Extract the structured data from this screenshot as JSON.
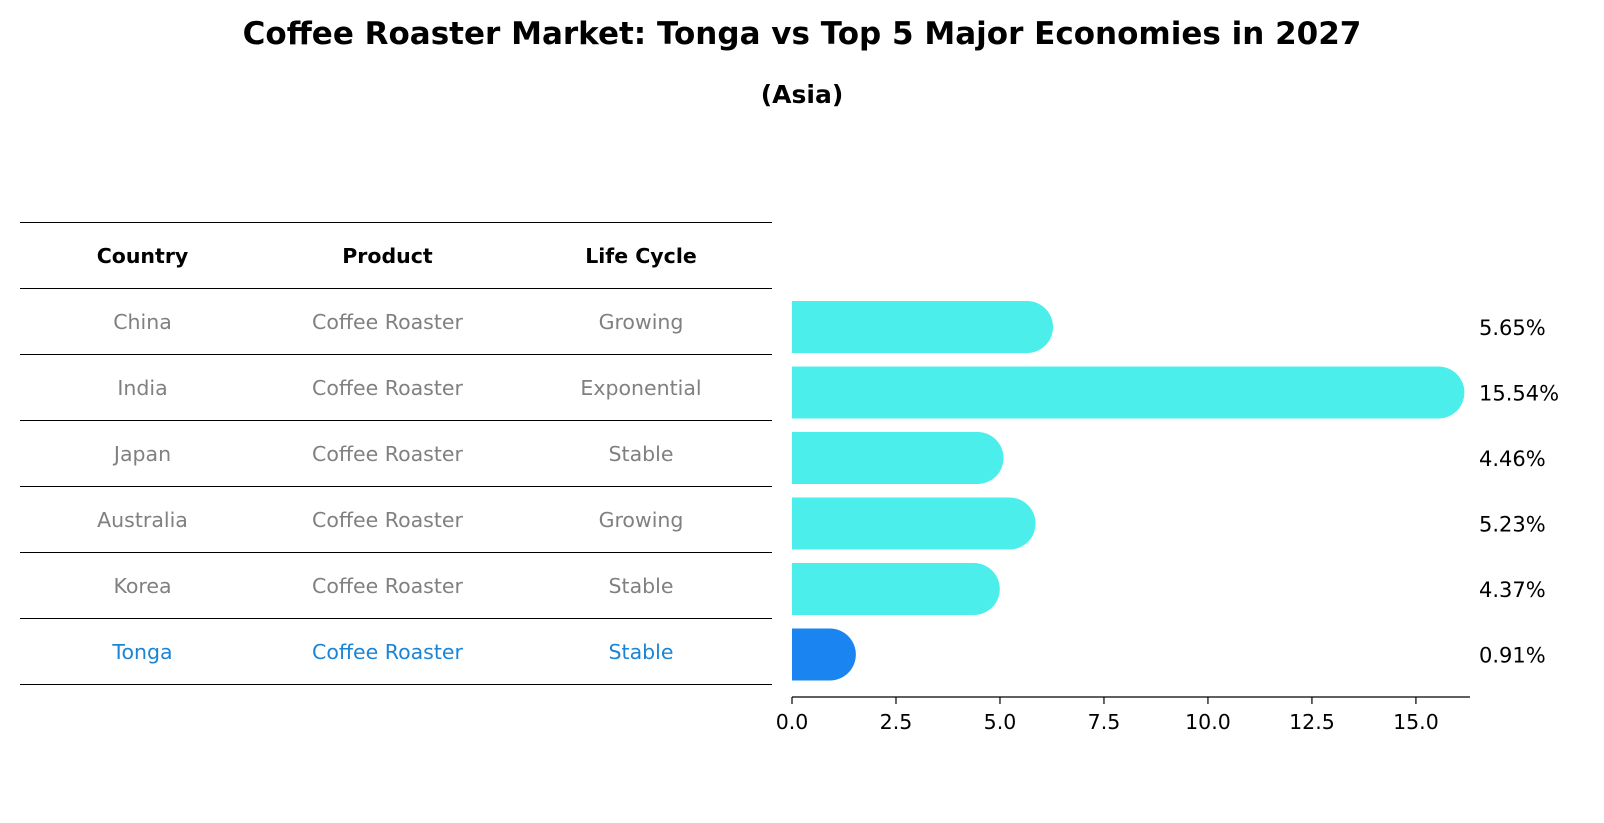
{
  "header": {
    "title": "Coffee Roaster Market: Tonga vs Top 5 Major Economies in 2027",
    "subtitle": "(Asia)"
  },
  "table": {
    "columns": [
      "Country",
      "Product",
      "Life Cycle"
    ],
    "rows": [
      {
        "country": "China",
        "product": "Coffee Roaster",
        "life_cycle": "Growing"
      },
      {
        "country": "India",
        "product": "Coffee Roaster",
        "life_cycle": "Exponential"
      },
      {
        "country": "Japan",
        "product": "Coffee Roaster",
        "life_cycle": "Stable"
      },
      {
        "country": "Australia",
        "product": "Coffee Roaster",
        "life_cycle": "Growing"
      },
      {
        "country": "Korea",
        "product": "Coffee Roaster",
        "life_cycle": "Stable"
      },
      {
        "country": "Tonga",
        "product": "Coffee Roaster",
        "life_cycle": "Stable"
      }
    ]
  },
  "colors": {
    "bar": "#4beeea",
    "highlight_bar": "#1a85f0",
    "highlight_text": "#1a85d6",
    "muted_text": "#808080"
  },
  "chart_data": {
    "type": "bar",
    "orientation": "horizontal",
    "categories": [
      "China",
      "India",
      "Japan",
      "Australia",
      "Korea",
      "Tonga"
    ],
    "values": [
      5.65,
      15.54,
      4.46,
      5.23,
      4.37,
      0.91
    ],
    "value_labels": [
      "5.65%",
      "15.54%",
      "4.46%",
      "5.23%",
      "4.37%",
      "0.91%"
    ],
    "highlight": "Tonga",
    "xlim": [
      0,
      16.3
    ],
    "xticks": [
      0,
      2.5,
      5,
      7.5,
      10,
      12.5,
      15
    ],
    "xtick_labels": [
      "0.0",
      "2.5",
      "5.0",
      "7.5",
      "10.0",
      "12.5",
      "15.0"
    ],
    "title": "Coffee Roaster Market: Tonga vs Top 5 Major Economies in 2027",
    "subtitle": "(Asia)",
    "xlabel": "",
    "ylabel": "",
    "grid": false
  }
}
